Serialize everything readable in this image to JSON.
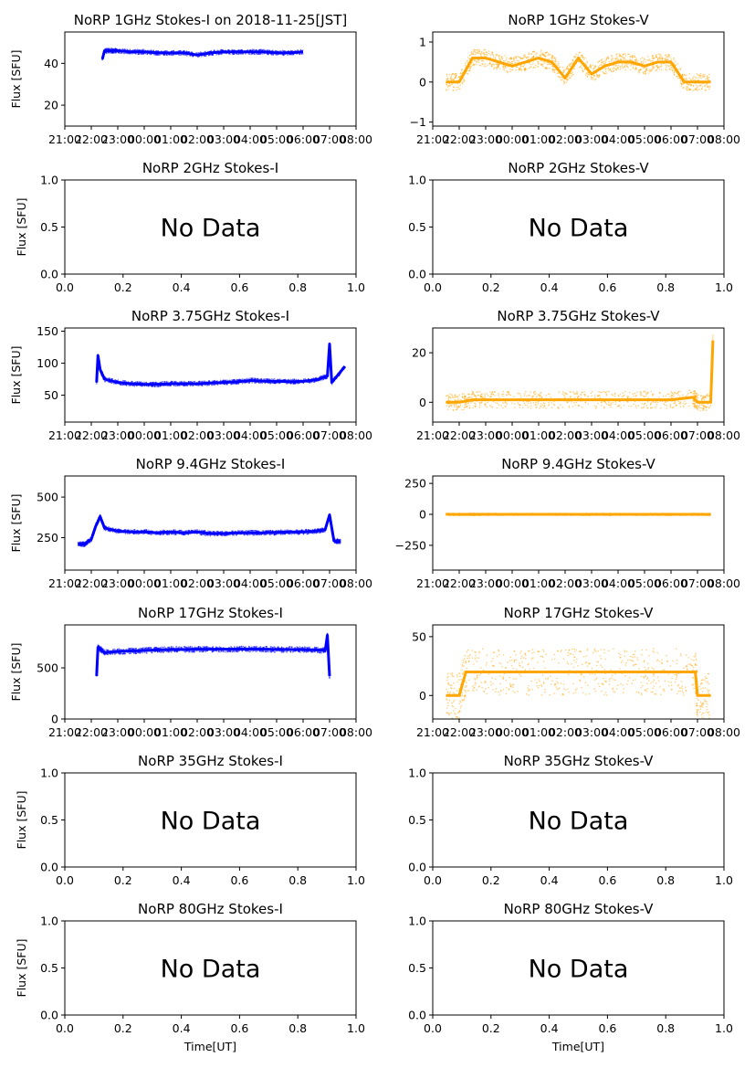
{
  "colors": {
    "stokes_i": "#0000ff",
    "stokes_v": "#ffa500"
  },
  "chart_data": [
    {
      "type": "scatter",
      "title": "NoRP 1GHz Stokes-I on 2018-11-25[JST]",
      "ylabel": "Flux [SFU]",
      "xlabel": "",
      "xlim": [
        "21:00",
        "08:00"
      ],
      "ylim": [
        10,
        55
      ],
      "x_ticks": [
        "21:00",
        "22:00",
        "23:00",
        "00:00",
        "01:00",
        "02:00",
        "03:00",
        "04:00",
        "05:00",
        "06:00",
        "07:00",
        "08:00"
      ],
      "y_ticks": [
        20,
        40
      ],
      "color": "#0000ff",
      "no_data": false,
      "series": [
        {
          "x": [
            "22:25",
            "22:30",
            "22:45",
            "23:00",
            "23:30",
            "00:00",
            "00:30",
            "01:00",
            "01:30",
            "02:00",
            "02:30",
            "03:00",
            "03:30",
            "04:00",
            "04:30",
            "05:00",
            "05:30",
            "06:00"
          ],
          "y": [
            42,
            46,
            46,
            46,
            45.5,
            45.5,
            45,
            45,
            45,
            44,
            45,
            45.5,
            45.5,
            45.5,
            45.5,
            45,
            45,
            45.5
          ]
        }
      ]
    },
    {
      "type": "scatter",
      "title": "NoRP 1GHz Stokes-V",
      "ylabel": "",
      "xlabel": "",
      "xlim": [
        "21:00",
        "08:00"
      ],
      "ylim": [
        -1.1,
        1.25
      ],
      "x_ticks": [
        "21:00",
        "22:00",
        "23:00",
        "00:00",
        "01:00",
        "02:00",
        "03:00",
        "04:00",
        "05:00",
        "06:00",
        "07:00",
        "08:00"
      ],
      "y_ticks": [
        -1,
        0,
        1
      ],
      "color": "#ffa500",
      "no_data": false,
      "series": [
        {
          "x": [
            "21:30",
            "22:00",
            "22:30",
            "23:00",
            "23:30",
            "00:00",
            "00:30",
            "01:00",
            "01:30",
            "02:00",
            "02:30",
            "03:00",
            "03:30",
            "04:00",
            "04:30",
            "05:00",
            "05:30",
            "06:00",
            "06:30",
            "07:00",
            "07:30"
          ],
          "y": [
            0,
            0,
            0.6,
            0.6,
            0.5,
            0.4,
            0.5,
            0.6,
            0.5,
            0.1,
            0.6,
            0.2,
            0.4,
            0.5,
            0.5,
            0.4,
            0.5,
            0.5,
            0,
            0,
            0
          ]
        }
      ]
    },
    {
      "type": "scatter",
      "title": "NoRP 2GHz Stokes-I",
      "ylabel": "Flux [SFU]",
      "xlabel": "",
      "xlim": [
        0,
        1
      ],
      "ylim": [
        0,
        1
      ],
      "x_ticks": [
        "0.0",
        "0.2",
        "0.4",
        "0.6",
        "0.8",
        "1.0"
      ],
      "y_ticks": [
        "0.0",
        "0.5",
        "1.0"
      ],
      "no_data": true,
      "annotation": "No Data",
      "series": []
    },
    {
      "type": "scatter",
      "title": "NoRP 2GHz Stokes-V",
      "ylabel": "",
      "xlabel": "",
      "xlim": [
        0,
        1
      ],
      "ylim": [
        0,
        1
      ],
      "x_ticks": [
        "0.0",
        "0.2",
        "0.4",
        "0.6",
        "0.8",
        "1.0"
      ],
      "y_ticks": [
        "0.0",
        "0.5",
        "1.0"
      ],
      "no_data": true,
      "annotation": "No Data",
      "series": []
    },
    {
      "type": "scatter",
      "title": "NoRP 3.75GHz Stokes-I",
      "ylabel": "Flux [SFU]",
      "xlabel": "",
      "xlim": [
        "21:00",
        "08:00"
      ],
      "ylim": [
        8,
        155
      ],
      "x_ticks": [
        "21:00",
        "22:00",
        "23:00",
        "00:00",
        "01:00",
        "02:00",
        "03:00",
        "04:00",
        "05:00",
        "06:00",
        "07:00",
        "08:00"
      ],
      "y_ticks": [
        50,
        100,
        150
      ],
      "color": "#0000ff",
      "no_data": false,
      "series": [
        {
          "x": [
            "22:12",
            "22:15",
            "22:20",
            "22:30",
            "23:00",
            "23:30",
            "00:00",
            "00:30",
            "01:00",
            "01:30",
            "02:00",
            "02:30",
            "03:00",
            "03:30",
            "04:00",
            "04:30",
            "05:00",
            "05:30",
            "06:00",
            "06:30",
            "06:55",
            "07:00",
            "07:05",
            "07:35"
          ],
          "y": [
            70,
            112,
            90,
            75,
            70,
            68,
            67,
            67,
            68,
            68,
            68,
            69,
            70,
            71,
            73,
            72,
            72,
            71,
            72,
            74,
            80,
            130,
            70,
            95
          ]
        }
      ]
    },
    {
      "type": "scatter",
      "title": "NoRP 3.75GHz Stokes-V",
      "ylabel": "",
      "xlabel": "",
      "xlim": [
        "21:00",
        "08:00"
      ],
      "ylim": [
        -8,
        30
      ],
      "x_ticks": [
        "21:00",
        "22:00",
        "23:00",
        "00:00",
        "01:00",
        "02:00",
        "03:00",
        "04:00",
        "05:00",
        "06:00",
        "07:00",
        "08:00"
      ],
      "y_ticks": [
        0,
        20
      ],
      "color": "#ffa500",
      "no_data": false,
      "series": [
        {
          "x": [
            "21:30",
            "22:00",
            "22:30",
            "23:00",
            "00:00",
            "01:00",
            "02:00",
            "03:00",
            "04:00",
            "05:00",
            "06:00",
            "06:50",
            "07:00",
            "07:30",
            "07:35"
          ],
          "y": [
            0,
            0,
            1,
            1,
            1,
            1,
            1,
            1,
            1,
            1,
            1,
            2,
            0,
            0,
            25
          ]
        }
      ]
    },
    {
      "type": "scatter",
      "title": "NoRP 9.4GHz Stokes-I",
      "ylabel": "Flux [SFU]",
      "xlabel": "",
      "xlim": [
        "21:00",
        "08:00"
      ],
      "ylim": [
        50,
        630
      ],
      "x_ticks": [
        "21:00",
        "22:00",
        "23:00",
        "00:00",
        "01:00",
        "02:00",
        "03:00",
        "04:00",
        "05:00",
        "06:00",
        "07:00",
        "08:00"
      ],
      "y_ticks": [
        250,
        500
      ],
      "color": "#0000ff",
      "no_data": false,
      "series": [
        {
          "x": [
            "21:30",
            "21:45",
            "22:00",
            "22:10",
            "22:20",
            "22:30",
            "23:00",
            "23:30",
            "00:00",
            "00:30",
            "01:00",
            "01:30",
            "02:00",
            "02:30",
            "03:00",
            "03:30",
            "04:00",
            "04:30",
            "05:00",
            "05:30",
            "06:00",
            "06:30",
            "06:50",
            "07:00",
            "07:10",
            "07:25"
          ],
          "y": [
            210,
            210,
            240,
            320,
            380,
            310,
            290,
            285,
            285,
            280,
            285,
            280,
            285,
            275,
            275,
            280,
            280,
            280,
            282,
            285,
            285,
            290,
            300,
            390,
            230,
            225
          ]
        }
      ]
    },
    {
      "type": "scatter",
      "title": "NoRP 9.4GHz Stokes-V",
      "ylabel": "",
      "xlabel": "",
      "xlim": [
        "21:00",
        "08:00"
      ],
      "ylim": [
        -450,
        310
      ],
      "x_ticks": [
        "21:00",
        "22:00",
        "23:00",
        "00:00",
        "01:00",
        "02:00",
        "03:00",
        "04:00",
        "05:00",
        "06:00",
        "07:00",
        "08:00"
      ],
      "y_ticks": [
        -250,
        0,
        250
      ],
      "color": "#ffa500",
      "no_data": false,
      "series": [
        {
          "x": [
            "21:30",
            "22:00",
            "22:30",
            "23:00",
            "00:00",
            "01:00",
            "02:00",
            "03:00",
            "04:00",
            "05:00",
            "06:00",
            "07:00",
            "07:30"
          ],
          "y": [
            0,
            0,
            0,
            0,
            0,
            0,
            0,
            0,
            0,
            0,
            0,
            0,
            0
          ]
        }
      ]
    },
    {
      "type": "scatter",
      "title": "NoRP 17GHz Stokes-I",
      "ylabel": "Flux [SFU]",
      "xlabel": "",
      "xlim": [
        "21:00",
        "08:00"
      ],
      "ylim": [
        0,
        920
      ],
      "x_ticks": [
        "21:00",
        "22:00",
        "23:00",
        "00:00",
        "01:00",
        "02:00",
        "03:00",
        "04:00",
        "05:00",
        "06:00",
        "07:00",
        "08:00"
      ],
      "y_ticks": [
        0,
        500
      ],
      "color": "#0000ff",
      "no_data": false,
      "series": [
        {
          "x": [
            "22:12",
            "22:15",
            "22:30",
            "23:00",
            "23:30",
            "00:00",
            "00:30",
            "01:00",
            "01:30",
            "02:00",
            "02:30",
            "03:00",
            "03:30",
            "04:00",
            "04:30",
            "05:00",
            "05:30",
            "06:00",
            "06:30",
            "06:50",
            "06:55",
            "07:00"
          ],
          "y": [
            420,
            700,
            650,
            660,
            665,
            670,
            675,
            680,
            680,
            682,
            682,
            682,
            683,
            683,
            682,
            680,
            680,
            678,
            675,
            670,
            820,
            420
          ]
        }
      ]
    },
    {
      "type": "scatter",
      "title": "NoRP 17GHz Stokes-V",
      "ylabel": "",
      "xlabel": "",
      "xlim": [
        "21:00",
        "08:00"
      ],
      "ylim": [
        -20,
        60
      ],
      "x_ticks": [
        "21:00",
        "22:00",
        "23:00",
        "00:00",
        "01:00",
        "02:00",
        "03:00",
        "04:00",
        "05:00",
        "06:00",
        "07:00",
        "08:00"
      ],
      "y_ticks": [
        0,
        50
      ],
      "color": "#ffa500",
      "no_data": false,
      "series": [
        {
          "x": [
            "21:30",
            "22:00",
            "22:15",
            "23:00",
            "00:00",
            "01:00",
            "02:00",
            "03:00",
            "04:00",
            "05:00",
            "06:00",
            "06:55",
            "07:00",
            "07:30"
          ],
          "y": [
            0,
            0,
            20,
            20,
            20,
            20,
            20,
            20,
            20,
            20,
            20,
            20,
            0,
            0
          ]
        }
      ]
    },
    {
      "type": "scatter",
      "title": "NoRP 35GHz Stokes-I",
      "ylabel": "Flux [SFU]",
      "xlabel": "",
      "xlim": [
        0,
        1
      ],
      "ylim": [
        0,
        1
      ],
      "x_ticks": [
        "0.0",
        "0.2",
        "0.4",
        "0.6",
        "0.8",
        "1.0"
      ],
      "y_ticks": [
        "0.0",
        "0.5",
        "1.0"
      ],
      "no_data": true,
      "annotation": "No Data",
      "series": []
    },
    {
      "type": "scatter",
      "title": "NoRP 35GHz Stokes-V",
      "ylabel": "",
      "xlabel": "",
      "xlim": [
        0,
        1
      ],
      "ylim": [
        0,
        1
      ],
      "x_ticks": [
        "0.0",
        "0.2",
        "0.4",
        "0.6",
        "0.8",
        "1.0"
      ],
      "y_ticks": [
        "0.0",
        "0.5",
        "1.0"
      ],
      "no_data": true,
      "annotation": "No Data",
      "series": []
    },
    {
      "type": "scatter",
      "title": "NoRP 80GHz Stokes-I",
      "ylabel": "Flux [SFU]",
      "xlabel": "Time[UT]",
      "xlim": [
        0,
        1
      ],
      "ylim": [
        0,
        1
      ],
      "x_ticks": [
        "0.0",
        "0.2",
        "0.4",
        "0.6",
        "0.8",
        "1.0"
      ],
      "y_ticks": [
        "0.0",
        "0.5",
        "1.0"
      ],
      "no_data": true,
      "annotation": "No Data",
      "series": []
    },
    {
      "type": "scatter",
      "title": "NoRP 80GHz Stokes-V",
      "ylabel": "",
      "xlabel": "Time[UT]",
      "xlim": [
        0,
        1
      ],
      "ylim": [
        0,
        1
      ],
      "x_ticks": [
        "0.0",
        "0.2",
        "0.4",
        "0.6",
        "0.8",
        "1.0"
      ],
      "y_ticks": [
        "0.0",
        "0.5",
        "1.0"
      ],
      "no_data": true,
      "annotation": "No Data",
      "series": []
    }
  ]
}
